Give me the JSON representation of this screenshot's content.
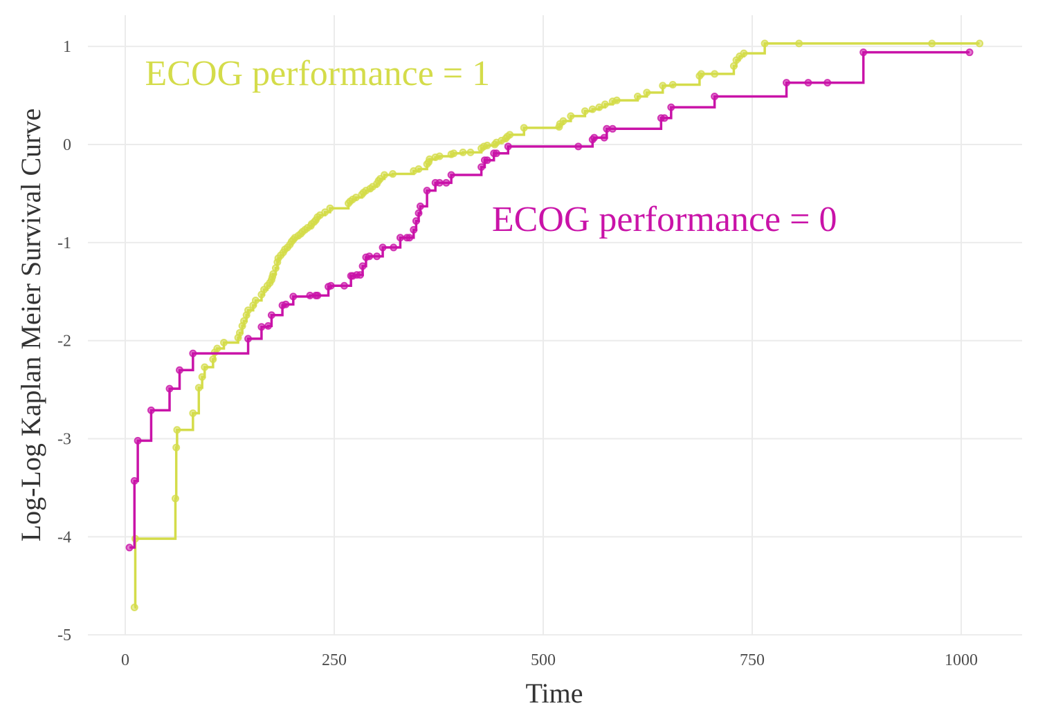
{
  "chart_data": {
    "type": "line",
    "title": "",
    "xlabel": "Time",
    "ylabel": "Log-Log Kaplan Meier Survival Curve",
    "xlim": [
      -45,
      1070
    ],
    "ylim": [
      -5,
      1.3
    ],
    "xticks": [
      0,
      250,
      500,
      750,
      1000
    ],
    "xtick_labels": [
      "0",
      "250",
      "500",
      "750",
      "1000"
    ],
    "yticks": [
      -5,
      -4,
      -3,
      -2,
      -1,
      0,
      1
    ],
    "ytick_labels": [
      "-5",
      "-4",
      "-3",
      "-2",
      "-1",
      "0",
      "1"
    ],
    "grid": true,
    "legend": "none",
    "series": [
      {
        "name": "ECOG performance = 1",
        "color": "#d4dc4a",
        "label_text": "ECOG performance = 1",
        "label_position": [
          230,
          0.72
        ],
        "x": [
          11,
          12,
          60,
          61,
          62,
          81,
          88,
          92,
          95,
          105,
          107,
          110,
          118,
          135,
          137,
          140,
          142,
          145,
          147,
          153,
          156,
          163,
          166,
          170,
          173,
          175,
          176,
          177,
          180,
          182,
          183,
          186,
          189,
          191,
          194,
          197,
          199,
          201,
          203,
          207,
          210,
          212,
          215,
          218,
          222,
          223,
          226,
          228,
          230,
          233,
          239,
          245,
          267,
          269,
          272,
          276,
          283,
          285,
          288,
          293,
          296,
          301,
          303,
          305,
          310,
          320,
          345,
          351,
          361,
          363,
          364,
          371,
          376,
          390,
          393,
          404,
          413,
          426,
          429,
          433,
          442,
          444,
          450,
          455,
          457,
          460,
          477,
          519,
          520,
          524,
          533,
          550,
          559,
          567,
          574,
          583,
          588,
          613,
          624,
          643,
          655,
          687,
          689,
          705,
          728,
          731,
          735,
          740,
          765,
          806,
          965,
          1022
        ],
        "y": [
          -4.72,
          -4.02,
          -3.61,
          -3.09,
          -2.91,
          -2.74,
          -2.48,
          -2.37,
          -2.27,
          -2.19,
          -2.12,
          -2.08,
          -2.02,
          -1.97,
          -1.92,
          -1.85,
          -1.8,
          -1.74,
          -1.69,
          -1.64,
          -1.59,
          -1.53,
          -1.48,
          -1.44,
          -1.41,
          -1.38,
          -1.35,
          -1.32,
          -1.26,
          -1.2,
          -1.16,
          -1.13,
          -1.1,
          -1.07,
          -1.05,
          -1.02,
          -0.99,
          -0.97,
          -0.95,
          -0.93,
          -0.91,
          -0.89,
          -0.87,
          -0.85,
          -0.83,
          -0.81,
          -0.79,
          -0.77,
          -0.74,
          -0.72,
          -0.69,
          -0.65,
          -0.6,
          -0.58,
          -0.56,
          -0.54,
          -0.51,
          -0.49,
          -0.47,
          -0.45,
          -0.43,
          -0.4,
          -0.37,
          -0.35,
          -0.31,
          -0.3,
          -0.27,
          -0.25,
          -0.2,
          -0.18,
          -0.15,
          -0.13,
          -0.12,
          -0.1,
          -0.09,
          -0.08,
          -0.08,
          -0.04,
          -0.02,
          -0.01,
          0.0,
          0.02,
          0.04,
          0.06,
          0.08,
          0.1,
          0.17,
          0.18,
          0.21,
          0.24,
          0.29,
          0.34,
          0.36,
          0.38,
          0.41,
          0.44,
          0.45,
          0.49,
          0.53,
          0.6,
          0.61,
          0.7,
          0.72,
          0.72,
          0.8,
          0.86,
          0.9,
          0.93,
          1.03,
          1.03,
          1.03,
          1.03
        ]
      },
      {
        "name": "ECOG performance = 0",
        "color": "#c913a8",
        "label_text": "ECOG performance = 0",
        "label_position": [
          645,
          -0.77
        ],
        "x": [
          5,
          11,
          15,
          31,
          53,
          65,
          81,
          147,
          163,
          171,
          175,
          188,
          192,
          201,
          221,
          228,
          230,
          243,
          246,
          262,
          270,
          272,
          277,
          281,
          284,
          288,
          292,
          301,
          308,
          321,
          329,
          337,
          340,
          345,
          348,
          351,
          353,
          361,
          371,
          376,
          384,
          390,
          426,
          430,
          433,
          441,
          444,
          458,
          542,
          559,
          561,
          573,
          576,
          583,
          641,
          645,
          653,
          705,
          791,
          817,
          840,
          883,
          1010
        ],
        "y": [
          -4.11,
          -3.43,
          -3.02,
          -2.71,
          -2.49,
          -2.3,
          -2.13,
          -1.98,
          -1.86,
          -1.85,
          -1.74,
          -1.64,
          -1.63,
          -1.55,
          -1.54,
          -1.54,
          -1.54,
          -1.45,
          -1.44,
          -1.44,
          -1.34,
          -1.34,
          -1.33,
          -1.33,
          -1.24,
          -1.15,
          -1.14,
          -1.14,
          -1.05,
          -1.05,
          -0.95,
          -0.95,
          -0.95,
          -0.87,
          -0.78,
          -0.7,
          -0.63,
          -0.47,
          -0.39,
          -0.39,
          -0.39,
          -0.31,
          -0.23,
          -0.16,
          -0.16,
          -0.09,
          -0.09,
          -0.02,
          -0.02,
          0.05,
          0.07,
          0.07,
          0.16,
          0.16,
          0.27,
          0.27,
          0.38,
          0.49,
          0.63,
          0.63,
          0.63,
          0.94,
          0.94
        ]
      }
    ]
  }
}
